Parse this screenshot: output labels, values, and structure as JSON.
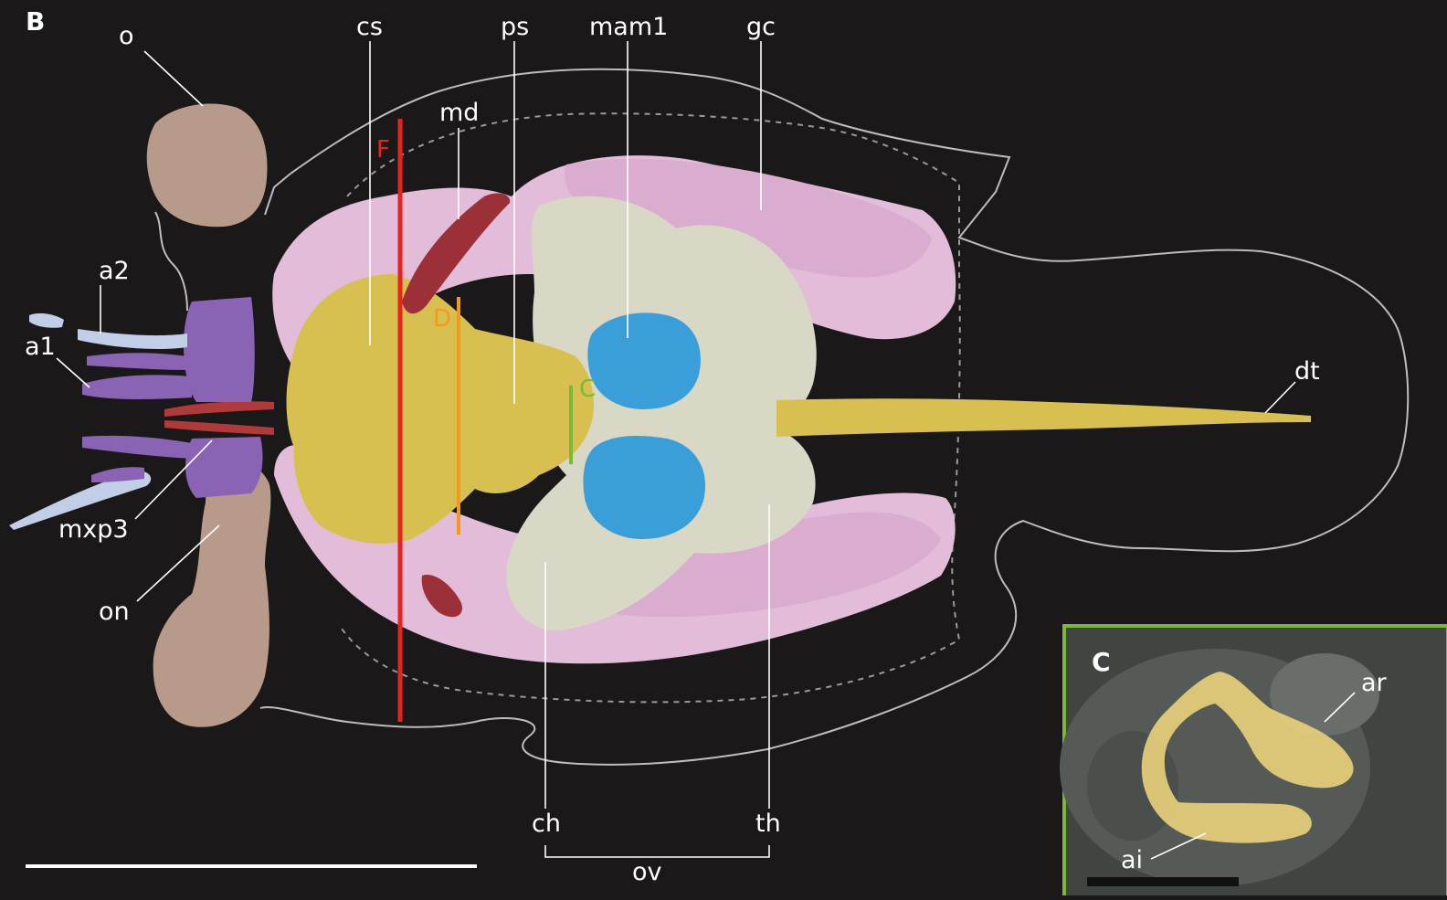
{
  "panel_b": {
    "label": "B",
    "labels": {
      "o": "o",
      "cs": "cs",
      "ps": "ps",
      "mam1": "mam1",
      "gc": "gc",
      "md": "md",
      "a2": "a2",
      "a1": "a1",
      "mxp3": "mxp3",
      "on": "on",
      "dt": "dt",
      "ch": "ch",
      "th": "th",
      "ov": "ov"
    },
    "section_markers": {
      "F": "F",
      "D": "D",
      "C": "C"
    }
  },
  "panel_c": {
    "label": "C",
    "labels": {
      "ar": "ar",
      "ai": "ai"
    }
  },
  "colors": {
    "background": "#1a1818",
    "section_f": "#e52420",
    "section_d": "#f39a1e",
    "section_c": "#7ab83a",
    "pink": "#e2bcd9",
    "yellow": "#d8c050",
    "cream": "#d9d7c5",
    "blue": "#3a9fd8",
    "tan": "#b89a8a",
    "purple": "#8b63b4",
    "pale_blue": "#c2cde8",
    "dark_red": "#9b3038",
    "inset_border": "#7ab83a"
  }
}
